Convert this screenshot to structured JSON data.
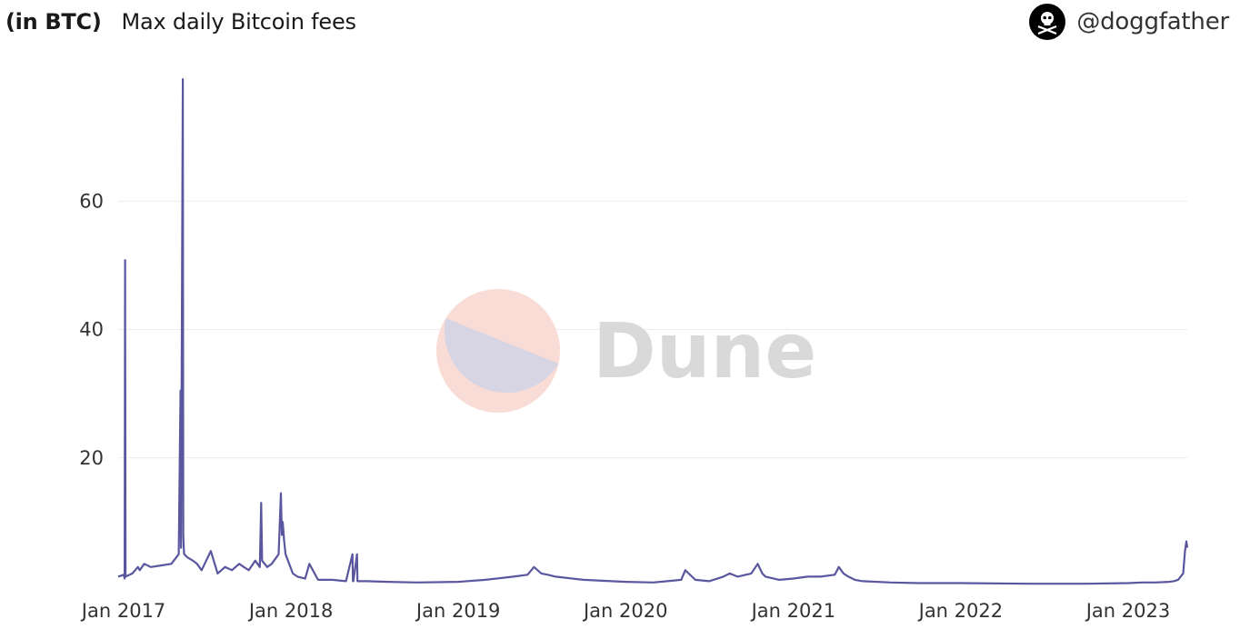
{
  "header": {
    "unit_label": "(in BTC)",
    "title": "Max daily Bitcoin fees"
  },
  "author": {
    "handle": "@doggfather",
    "avatar_icon": "pirate-skull-icon"
  },
  "watermark": {
    "text": "Dune",
    "logo_colors": [
      "#fadcd6",
      "#d7d5e3"
    ],
    "text_color": "#d9d9d9"
  },
  "chart_data": {
    "type": "line",
    "title": "Max daily Bitcoin fees",
    "xlabel": "",
    "ylabel": "(in BTC)",
    "x_ticks": [
      "Jan 2017",
      "Jan 2018",
      "Jan 2019",
      "Jan 2020",
      "Jan 2021",
      "Jan 2022",
      "Jan 2023"
    ],
    "y_ticks": [
      20,
      40,
      60
    ],
    "ylim": [
      0,
      80
    ],
    "xlim": [
      "2016-12-20",
      "2023-05-10"
    ],
    "grid": true,
    "color": "#5a579e",
    "series": [
      {
        "x": [
          "2016-12-20",
          "2017-01-01",
          "2017-01-03",
          "2017-01-04",
          "2017-01-05",
          "2017-01-20",
          "2017-02-01",
          "2017-02-05",
          "2017-02-15",
          "2017-03-01",
          "2017-03-20",
          "2017-04-15",
          "2017-05-01",
          "2017-05-05",
          "2017-05-06",
          "2017-05-10",
          "2017-05-11",
          "2017-05-12",
          "2017-05-13",
          "2017-05-20",
          "2017-06-01",
          "2017-06-10",
          "2017-06-20",
          "2017-07-10",
          "2017-07-25",
          "2017-08-10",
          "2017-08-25",
          "2017-09-10",
          "2017-09-20",
          "2017-10-01",
          "2017-10-15",
          "2017-10-25",
          "2017-10-28",
          "2017-10-30",
          "2017-11-10",
          "2017-11-20",
          "2017-12-05",
          "2017-12-10",
          "2017-12-12",
          "2017-12-14",
          "2017-12-17",
          "2017-12-20",
          "2018-01-05",
          "2018-01-15",
          "2018-02-01",
          "2018-02-10",
          "2018-03-01",
          "2018-04-01",
          "2018-05-01",
          "2018-05-15",
          "2018-05-16",
          "2018-05-17",
          "2018-05-25",
          "2018-05-26",
          "2018-06-15",
          "2018-08-01",
          "2018-10-01",
          "2019-01-01",
          "2019-03-01",
          "2019-05-01",
          "2019-06-01",
          "2019-06-15",
          "2019-07-01",
          "2019-07-15",
          "2019-08-01",
          "2019-10-01",
          "2019-12-01",
          "2020-01-01",
          "2020-03-01",
          "2020-04-01",
          "2020-05-01",
          "2020-05-10",
          "2020-06-01",
          "2020-07-01",
          "2020-08-01",
          "2020-08-15",
          "2020-09-01",
          "2020-10-01",
          "2020-10-15",
          "2020-10-25",
          "2020-11-01",
          "2020-12-01",
          "2021-01-01",
          "2021-02-01",
          "2021-03-01",
          "2021-04-01",
          "2021-04-10",
          "2021-04-20",
          "2021-05-01",
          "2021-05-15",
          "2021-06-01",
          "2021-08-01",
          "2021-10-01",
          "2022-01-01",
          "2022-06-01",
          "2022-10-01",
          "2023-01-01",
          "2023-02-01",
          "2023-03-01",
          "2023-04-01",
          "2023-04-10",
          "2023-04-20",
          "2023-05-01",
          "2023-05-05",
          "2023-05-08",
          "2023-05-10"
        ],
        "y": [
          1.5,
          1.8,
          1.2,
          50.8,
          1.5,
          2.0,
          3.0,
          2.5,
          3.5,
          3.0,
          3.2,
          3.5,
          5.0,
          30.5,
          6.0,
          79.0,
          8.0,
          6.0,
          5.0,
          4.5,
          4.0,
          3.5,
          2.5,
          5.5,
          2.0,
          3.0,
          2.5,
          3.5,
          3.0,
          2.5,
          4.0,
          3.0,
          13.0,
          4.0,
          3.0,
          3.5,
          5.0,
          14.5,
          8.0,
          10.0,
          7.0,
          5.0,
          2.0,
          1.5,
          1.2,
          3.5,
          1.0,
          1.0,
          0.8,
          5.0,
          0.8,
          0.8,
          5.0,
          0.8,
          0.8,
          0.7,
          0.6,
          0.7,
          1.0,
          1.5,
          1.8,
          3.0,
          2.0,
          1.8,
          1.5,
          1.0,
          0.8,
          0.7,
          0.6,
          0.8,
          1.0,
          2.5,
          1.0,
          0.8,
          1.5,
          2.0,
          1.5,
          2.0,
          3.5,
          2.0,
          1.5,
          1.0,
          1.2,
          1.5,
          1.5,
          1.8,
          3.0,
          2.0,
          1.5,
          1.0,
          0.8,
          0.6,
          0.5,
          0.5,
          0.4,
          0.4,
          0.5,
          0.6,
          0.6,
          0.7,
          0.8,
          1.0,
          2.0,
          5.5,
          7.0,
          6.0
        ]
      }
    ]
  }
}
